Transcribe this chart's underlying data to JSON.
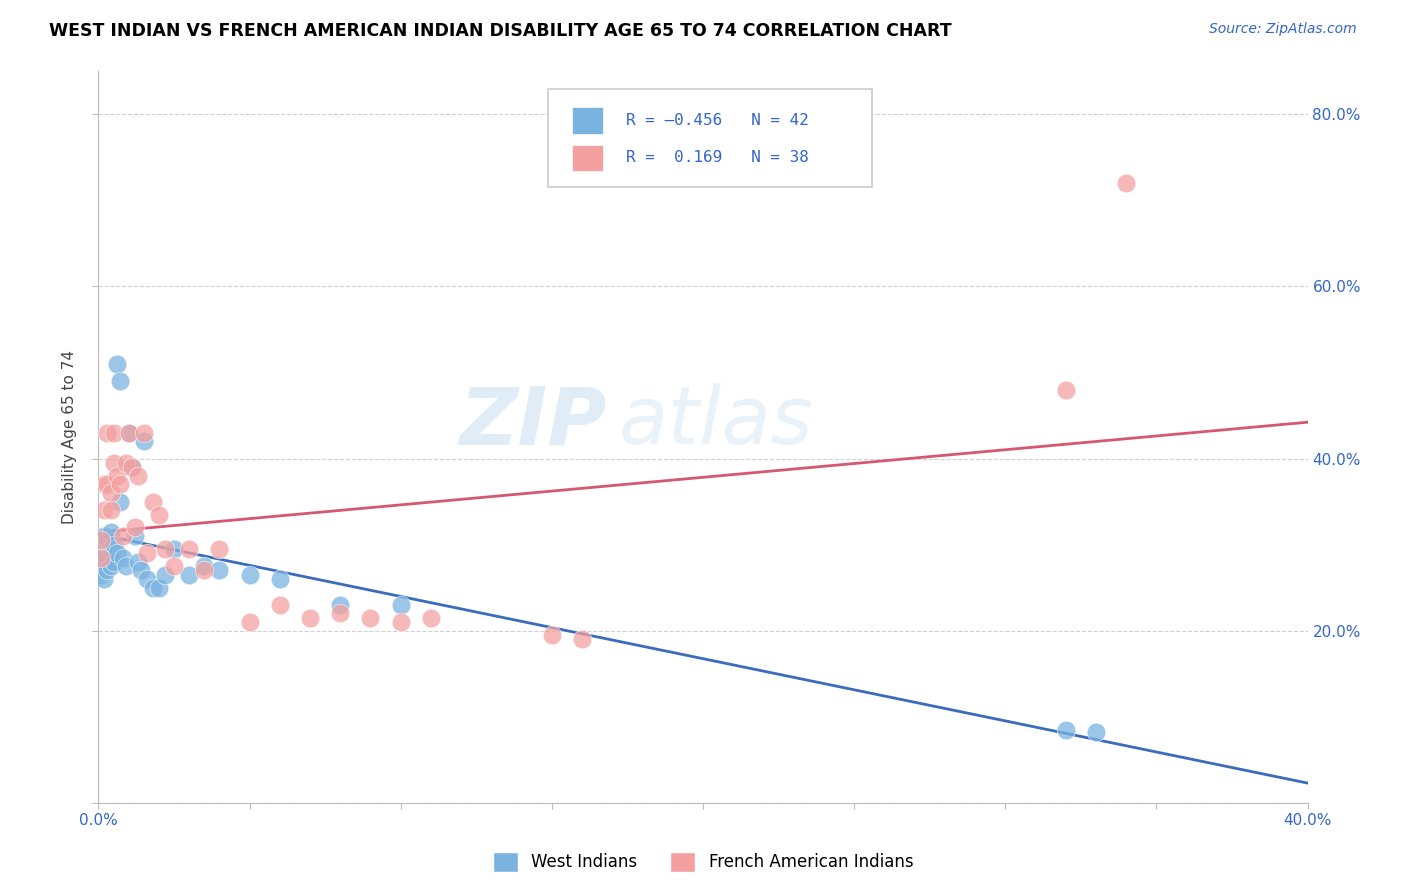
{
  "title": "WEST INDIAN VS FRENCH AMERICAN INDIAN DISABILITY AGE 65 TO 74 CORRELATION CHART",
  "source": "Source: ZipAtlas.com",
  "ylabel": "Disability Age 65 to 74",
  "xlim": [
    0.0,
    0.4
  ],
  "ylim": [
    0.0,
    0.85
  ],
  "x_ticks": [
    0.0,
    0.05,
    0.1,
    0.15,
    0.2,
    0.25,
    0.3,
    0.35,
    0.4
  ],
  "y_ticks": [
    0.0,
    0.2,
    0.4,
    0.6,
    0.8
  ],
  "blue_color": "#7ab3e0",
  "pink_color": "#f4a0a0",
  "blue_line_color": "#3a6bbf",
  "pink_line_color": "#d45870",
  "watermark_top": "ZIP",
  "watermark_bot": "atlas",
  "west_indian_x": [
    0.001,
    0.001,
    0.001,
    0.001,
    0.002,
    0.002,
    0.002,
    0.002,
    0.003,
    0.003,
    0.003,
    0.004,
    0.004,
    0.004,
    0.005,
    0.005,
    0.006,
    0.006,
    0.007,
    0.007,
    0.008,
    0.009,
    0.01,
    0.011,
    0.012,
    0.013,
    0.014,
    0.015,
    0.016,
    0.018,
    0.02,
    0.022,
    0.025,
    0.03,
    0.035,
    0.04,
    0.05,
    0.06,
    0.08,
    0.1,
    0.32,
    0.33
  ],
  "west_indian_y": [
    0.295,
    0.285,
    0.275,
    0.265,
    0.31,
    0.29,
    0.275,
    0.26,
    0.305,
    0.285,
    0.27,
    0.315,
    0.295,
    0.275,
    0.3,
    0.28,
    0.51,
    0.29,
    0.49,
    0.35,
    0.285,
    0.275,
    0.43,
    0.39,
    0.31,
    0.28,
    0.27,
    0.42,
    0.26,
    0.25,
    0.25,
    0.265,
    0.295,
    0.265,
    0.275,
    0.27,
    0.265,
    0.26,
    0.23,
    0.23,
    0.085,
    0.082
  ],
  "french_x": [
    0.001,
    0.001,
    0.002,
    0.002,
    0.003,
    0.003,
    0.004,
    0.004,
    0.005,
    0.005,
    0.006,
    0.007,
    0.008,
    0.009,
    0.01,
    0.011,
    0.012,
    0.013,
    0.015,
    0.016,
    0.018,
    0.02,
    0.022,
    0.025,
    0.03,
    0.035,
    0.04,
    0.05,
    0.06,
    0.07,
    0.08,
    0.09,
    0.1,
    0.11,
    0.15,
    0.16,
    0.32,
    0.34
  ],
  "french_y": [
    0.305,
    0.285,
    0.37,
    0.34,
    0.43,
    0.37,
    0.36,
    0.34,
    0.43,
    0.395,
    0.38,
    0.37,
    0.31,
    0.395,
    0.43,
    0.39,
    0.32,
    0.38,
    0.43,
    0.29,
    0.35,
    0.335,
    0.295,
    0.275,
    0.295,
    0.27,
    0.295,
    0.21,
    0.23,
    0.215,
    0.22,
    0.215,
    0.21,
    0.215,
    0.195,
    0.19,
    0.48,
    0.72
  ]
}
